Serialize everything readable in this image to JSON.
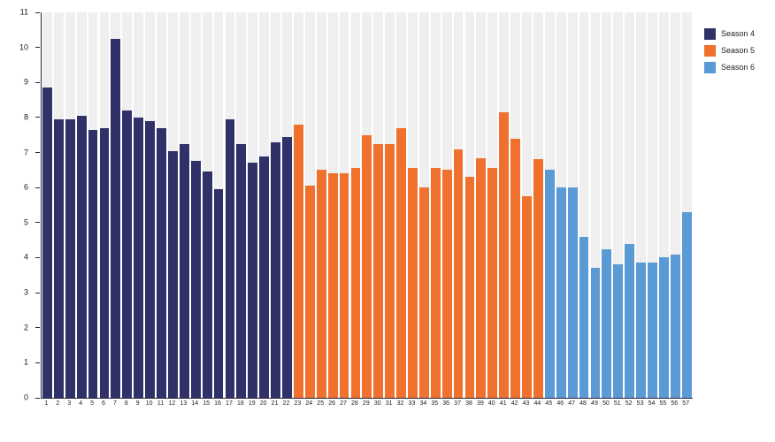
{
  "colors": {
    "season4": "#2f3168",
    "season5": "#f0712d",
    "season6": "#5b9bd5",
    "stripe": "#efefef",
    "stripe_gap": "#fbfbfb",
    "axis": "#25253d",
    "tick_label": "#1c1c1c"
  },
  "legend": {
    "position": "top-right",
    "items": [
      {
        "label": "Season 4",
        "color": "#2f3168"
      },
      {
        "label": "Season 5",
        "color": "#f0712d"
      },
      {
        "label": "Season 6",
        "color": "#5b9bd5"
      }
    ]
  },
  "chart_data": {
    "type": "bar",
    "title": "",
    "xlabel": "",
    "ylabel": "",
    "ylim": [
      0,
      11
    ],
    "y_axis": {
      "min": 0,
      "max": 11,
      "step": 1
    },
    "grid": false,
    "background_stripes": true,
    "x": [
      1,
      2,
      3,
      4,
      5,
      6,
      7,
      8,
      9,
      10,
      11,
      12,
      13,
      14,
      15,
      16,
      17,
      18,
      19,
      20,
      21,
      22,
      23,
      24,
      25,
      26,
      27,
      28,
      29,
      30,
      31,
      32,
      33,
      34,
      35,
      36,
      37,
      38,
      39,
      40,
      41,
      42,
      43,
      44,
      45,
      46,
      47,
      48,
      49,
      50,
      51,
      52,
      53,
      54,
      55,
      56,
      57
    ],
    "series": [
      {
        "name": "Season 4",
        "color": "#2f3168",
        "x_start": 1,
        "values": [
          8.85,
          7.95,
          7.95,
          8.05,
          7.65,
          7.7,
          10.25,
          8.2,
          8.0,
          7.9,
          7.7,
          7.05,
          7.25,
          6.75,
          6.45,
          5.95,
          7.95,
          7.25,
          6.7,
          6.9,
          7.3,
          7.45
        ]
      },
      {
        "name": "Season 5",
        "color": "#f0712d",
        "x_start": 23,
        "values": [
          7.8,
          6.05,
          6.5,
          6.4,
          6.4,
          6.55,
          7.5,
          7.25,
          7.25,
          7.7,
          6.55,
          6.0,
          6.55,
          6.5,
          7.1,
          6.3,
          6.85,
          6.55,
          8.15,
          7.4,
          5.75,
          6.8
        ]
      },
      {
        "name": "Season 6",
        "color": "#5b9bd5",
        "x_start": 45,
        "values": [
          6.5,
          6.0,
          6.0,
          4.6,
          3.7,
          4.25,
          3.8,
          4.4,
          3.85,
          3.85,
          4.0,
          4.1,
          5.3
        ]
      }
    ]
  }
}
